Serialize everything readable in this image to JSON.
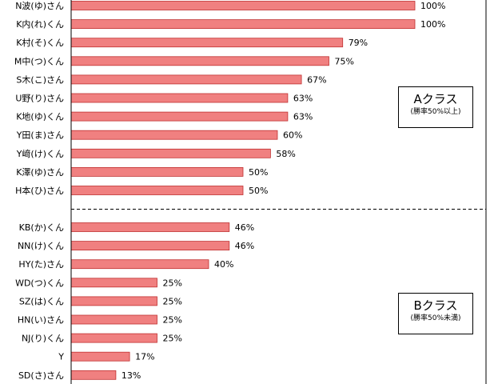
{
  "chart_data": {
    "type": "bar",
    "orientation": "horizontal",
    "xlim": [
      0,
      100
    ],
    "value_suffix": "%",
    "groups": [
      {
        "title": "Aクラス",
        "subtitle": "(勝率50%以上)",
        "categories": [
          "N波(ゆ)さん",
          "K内(れ)くん",
          "K村(そ)くん",
          "M中(つ)くん",
          "S木(こ)さん",
          "U野(り)さん",
          "K地(ゆ)くん",
          "Y田(ま)さん",
          "Y﨑(け)くん",
          "K澤(ゆ)さん",
          "H本(ひ)さん"
        ],
        "values": [
          100,
          100,
          79,
          75,
          67,
          63,
          63,
          60,
          58,
          50,
          50
        ]
      },
      {
        "title": "Bクラス",
        "subtitle": "(勝率50%未満)",
        "categories": [
          "KB(か)くん",
          "NN(け)くん",
          "HY(た)さん",
          "WD(つ)くん",
          "SZ(は)くん",
          "HN(い)さん",
          "NJ(り)くん",
          "Y",
          "SD(さ)さん"
        ],
        "values": [
          46,
          46,
          40,
          25,
          25,
          25,
          25,
          17,
          13
        ]
      }
    ],
    "bar_color": "#f08080",
    "bar_edge_color": "#c03030",
    "divider": "dashed"
  }
}
